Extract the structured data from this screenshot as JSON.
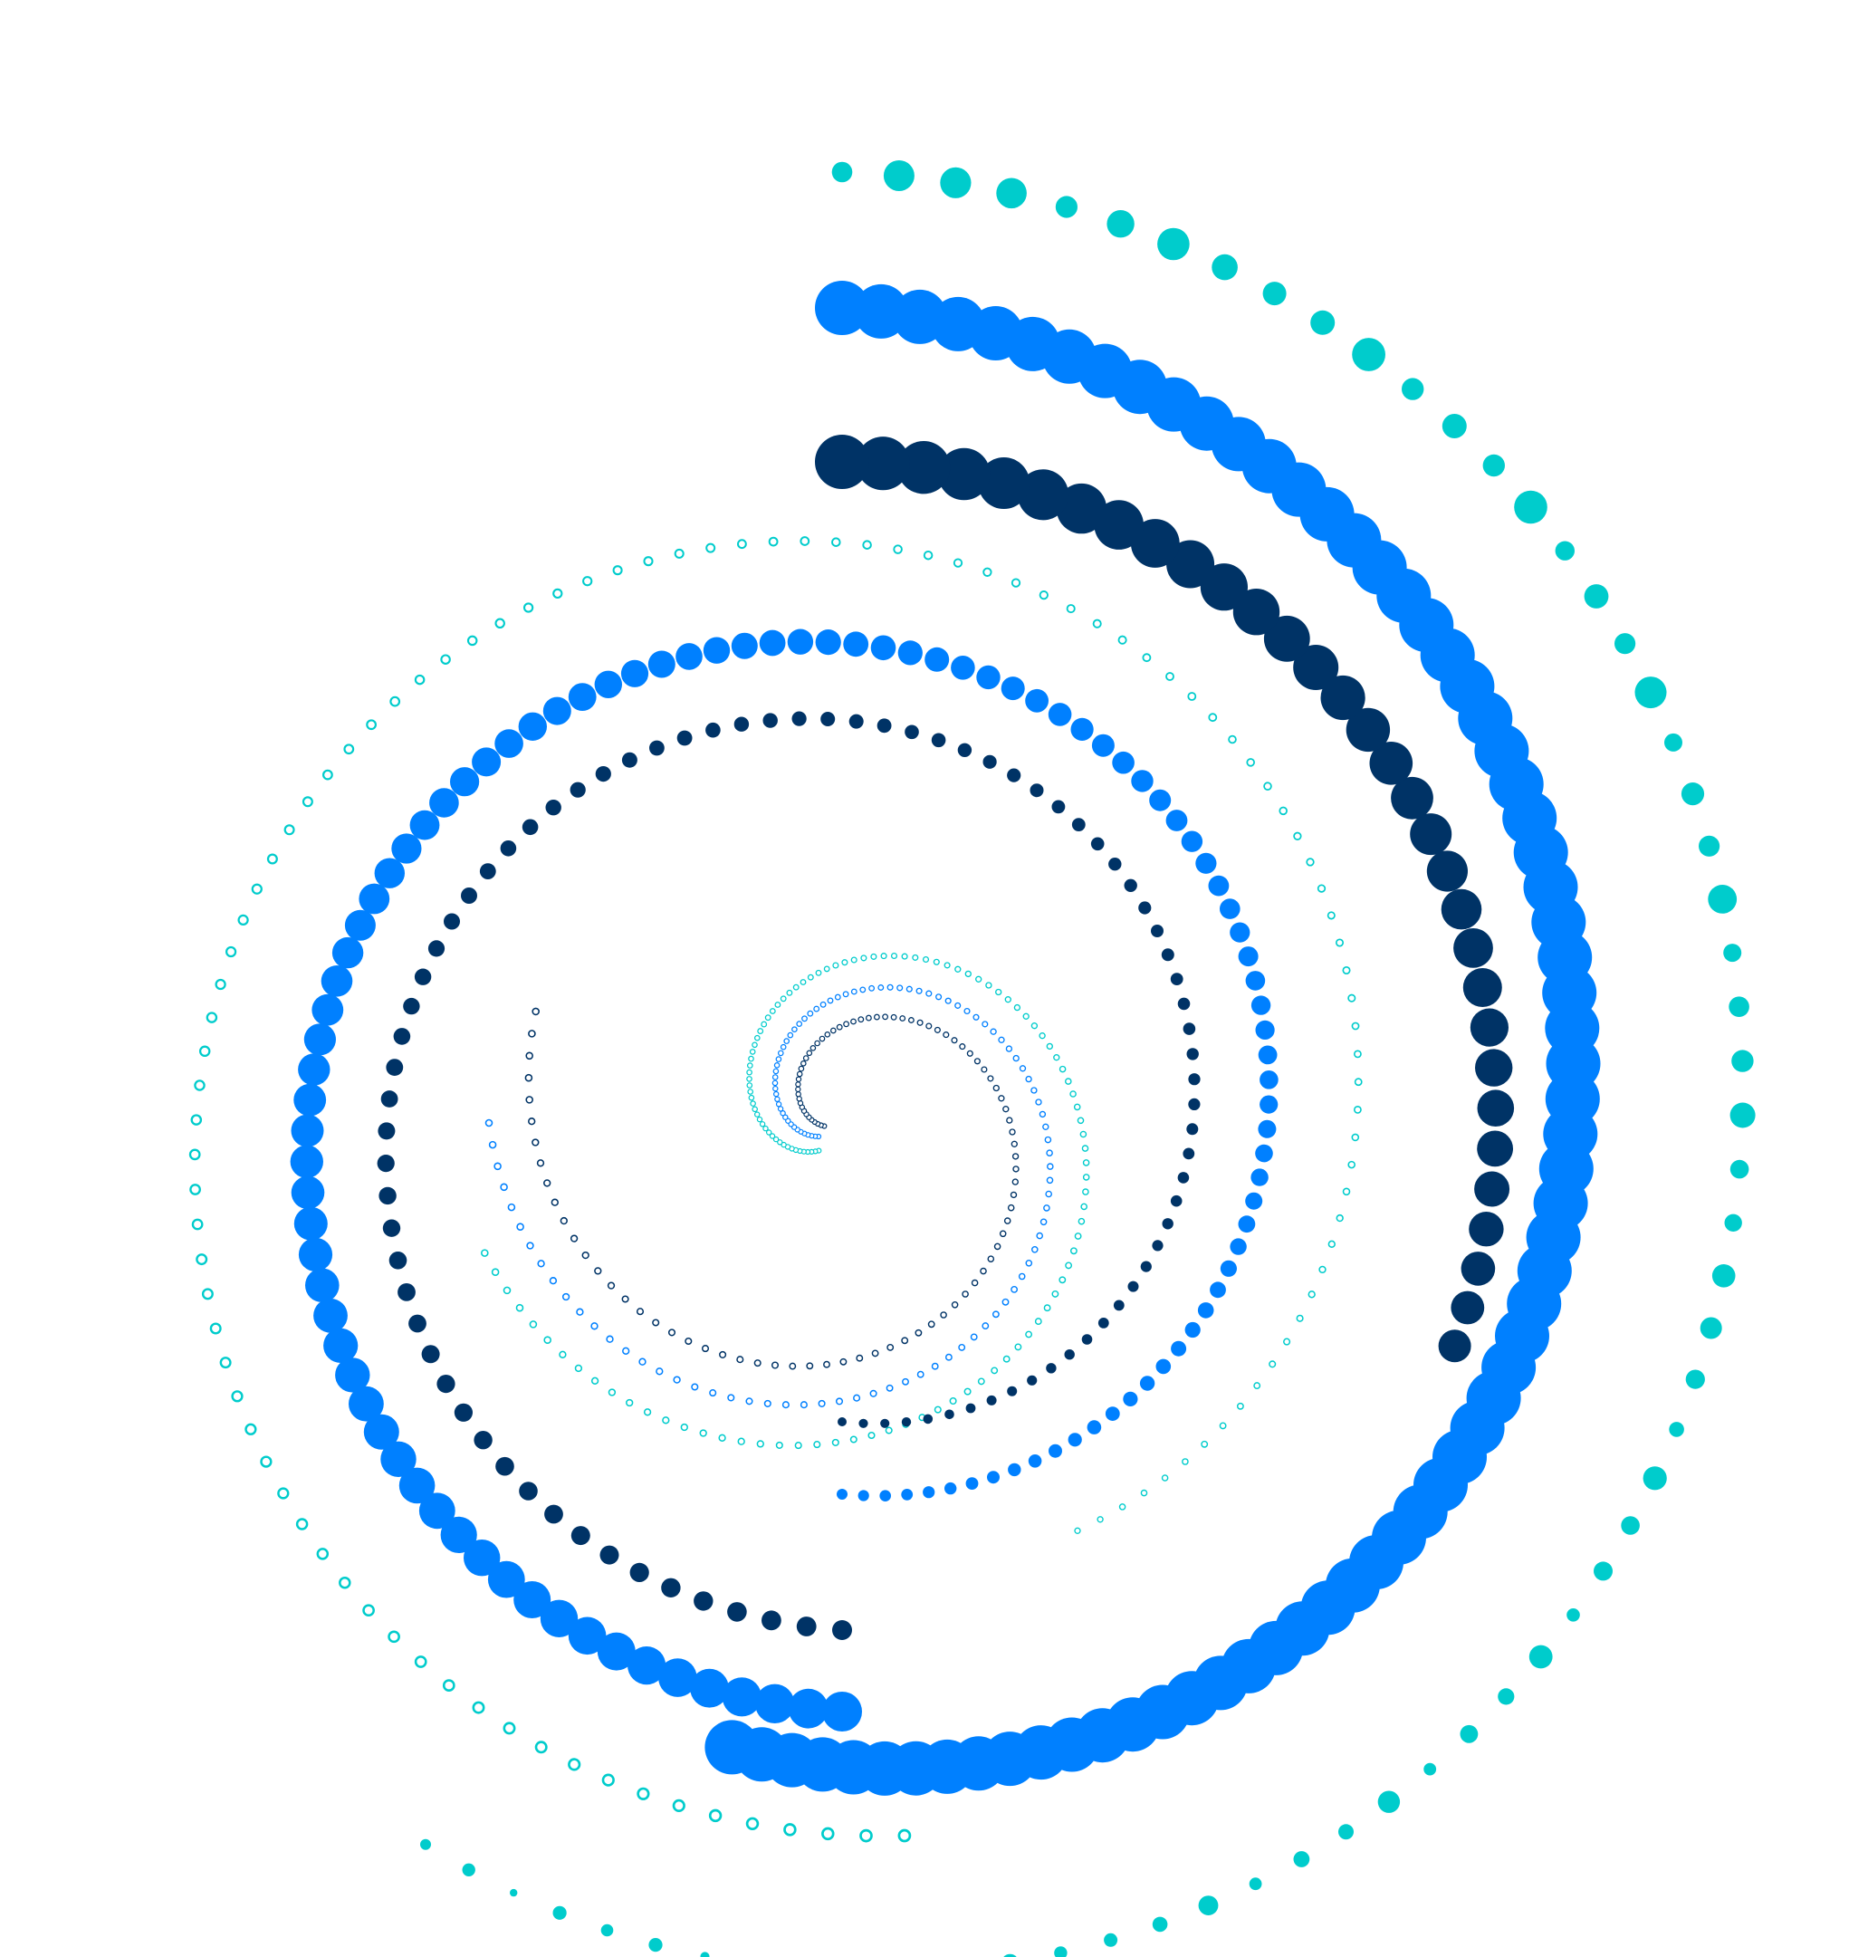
{
  "artwork": {
    "description_colors": {
      "teal": "#00cccc",
      "bright_blue": "#0080ff",
      "navy": "#003366"
    },
    "background": "#ffffff",
    "motif": "dotted spiral"
  }
}
